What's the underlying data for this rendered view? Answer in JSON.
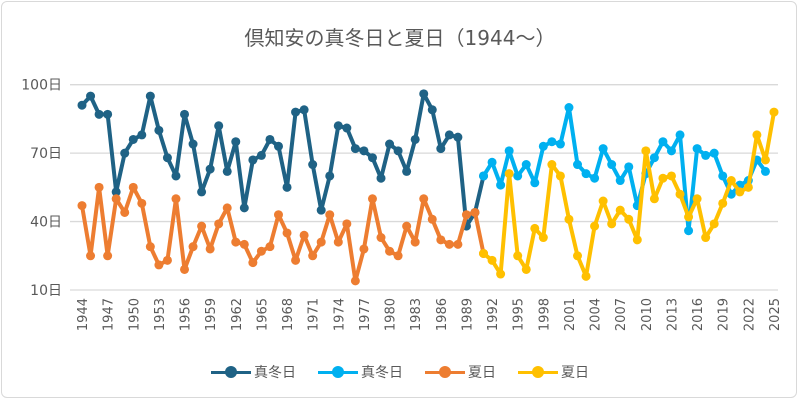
{
  "chart_data": {
    "type": "line",
    "title": "倶知安の真冬日と夏日（1944～）",
    "xlabel": "",
    "ylabel": "",
    "xlim": [
      1944,
      2025
    ],
    "ylim": [
      10,
      100
    ],
    "yticks": [
      10,
      40,
      70,
      100
    ],
    "ytick_labels": [
      "10日",
      "40日",
      "70日",
      "100日"
    ],
    "xticks": [
      1944,
      1947,
      1950,
      1953,
      1956,
      1959,
      1962,
      1965,
      1968,
      1971,
      1974,
      1977,
      1980,
      1983,
      1986,
      1989,
      1992,
      1995,
      1998,
      2001,
      2004,
      2007,
      2010,
      2013,
      2016,
      2019,
      2022,
      2025
    ],
    "grid": "horizontal",
    "legend_position": "bottom",
    "series": [
      {
        "name": "真冬日",
        "color": "#1f6285",
        "x_start": 1944,
        "values": [
          91,
          95,
          87,
          87,
          53,
          70,
          76,
          78,
          95,
          80,
          68,
          60,
          87,
          74,
          53,
          63,
          82,
          62,
          75,
          46,
          67,
          69,
          76,
          73,
          55,
          88,
          89,
          65,
          45,
          60,
          82,
          81,
          72,
          71,
          68,
          59,
          74,
          71,
          62,
          76,
          96,
          89,
          72,
          78,
          77,
          38,
          44,
          60
        ]
      },
      {
        "name": "真冬日",
        "color": "#00b0f0",
        "x_start": 1991,
        "values": [
          60,
          66,
          56,
          71,
          60,
          65,
          57,
          73,
          75,
          74,
          90,
          65,
          61,
          59,
          72,
          65,
          58,
          64,
          47,
          61,
          68,
          75,
          71,
          78,
          36,
          72,
          69,
          70,
          60,
          52,
          56,
          58,
          67,
          62
        ]
      },
      {
        "name": "夏日",
        "color": "#ed7d31",
        "x_start": 1944,
        "values": [
          47,
          25,
          55,
          25,
          50,
          44,
          55,
          48,
          29,
          21,
          23,
          50,
          19,
          29,
          38,
          28,
          39,
          46,
          31,
          30,
          22,
          27,
          29,
          43,
          35,
          23,
          34,
          25,
          31,
          43,
          31,
          39,
          14,
          28,
          50,
          33,
          27,
          25,
          38,
          31,
          50,
          41,
          32,
          30,
          30,
          43,
          44,
          26
        ]
      },
      {
        "name": "夏日",
        "color": "#ffc000",
        "x_start": 1991,
        "values": [
          26,
          23,
          17,
          61,
          25,
          19,
          37,
          33,
          65,
          60,
          41,
          25,
          16,
          38,
          49,
          39,
          45,
          41,
          32,
          71,
          50,
          59,
          60,
          52,
          42,
          50,
          33,
          39,
          48,
          58,
          53,
          55,
          78,
          67,
          88
        ]
      }
    ]
  }
}
